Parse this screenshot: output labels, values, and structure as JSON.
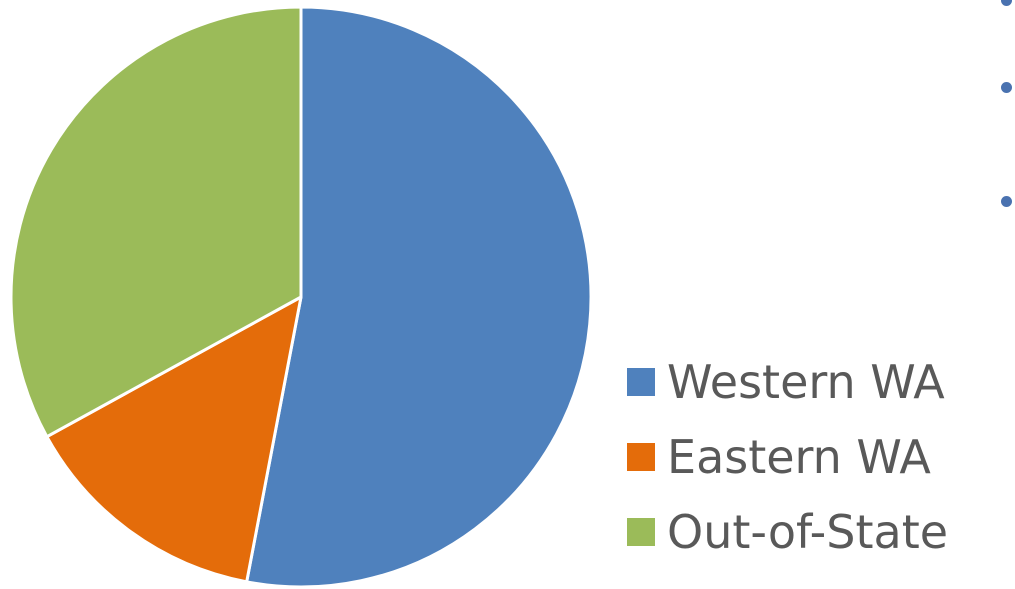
{
  "chart_data": {
    "type": "pie",
    "categories": [
      "Western WA",
      "Eastern WA",
      "Out-of-State"
    ],
    "values": [
      53,
      14,
      33
    ],
    "colors": [
      "#4f81bd",
      "#e46c0a",
      "#9bbb59"
    ],
    "slice_border_color": "#ffffff",
    "start_angle_deg": 0,
    "direction": "clockwise",
    "legend_position": "right"
  },
  "legend": {
    "items": [
      {
        "label": "Western WA",
        "color": "#4f81bd"
      },
      {
        "label": "Eastern WA",
        "color": "#e46c0a"
      },
      {
        "label": "Out-of-State",
        "color": "#9bbb59"
      }
    ]
  },
  "decor": {
    "bullet_color": "#4a72b0"
  }
}
